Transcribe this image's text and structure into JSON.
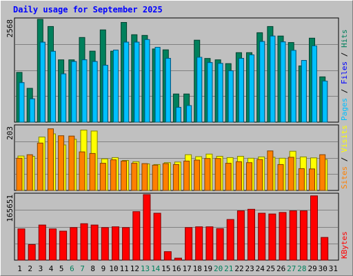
{
  "chart_data": {
    "type": "bar",
    "title": "Daily usage for September 2025",
    "categories": [
      "1",
      "2",
      "3",
      "4",
      "5",
      "6",
      "7",
      "8",
      "9",
      "10",
      "11",
      "12",
      "13",
      "14",
      "15",
      "16",
      "17",
      "18",
      "19",
      "20",
      "21",
      "22",
      "23",
      "24",
      "25",
      "26",
      "27",
      "28",
      "29",
      "30",
      "31"
    ],
    "weekend_days": [
      "6",
      "7",
      "13",
      "14",
      "20",
      "21",
      "27",
      "28"
    ],
    "panels": [
      {
        "name": "hits_files_pages",
        "ymax_label": "2568",
        "ymax": 2568,
        "legend": [
          {
            "text": "Hits",
            "color": "#00805C"
          },
          {
            "text": "Files",
            "color": "#0000FF"
          },
          {
            "text": "Pages",
            "color": "#00C0FF"
          }
        ],
        "series": [
          {
            "name": "Hits",
            "color": "#00805C",
            "values": [
              1242,
              845,
              2568,
              2388,
              1556,
              1556,
              2115,
              1773,
              2304,
              1773,
              2490,
              2183,
              2166,
              1829,
              1807,
              704,
              704,
              2047,
              1591,
              1556,
              1462,
              1735,
              1735,
              2234,
              2388,
              2151,
              1989,
              1404,
              2098,
              1131,
              0
            ]
          },
          {
            "name": "Files",
            "color": "#0000FF",
            "values": [
              986,
              581,
              1996,
              1768,
              1204,
              1513,
              1556,
              1513,
              1421,
              1800,
              1998,
              1998,
              2061,
              1870,
              1592,
              368,
              413,
              1620,
              1487,
              1466,
              1283,
              1593,
              1680,
              2013,
              2150,
              2005,
              1793,
              1541,
              1904,
              1025,
              0
            ]
          },
          {
            "name": "Pages",
            "color": "#00C0FF",
            "values": [
              986,
              581,
              1996,
              1768,
              1204,
              1513,
              1556,
              1513,
              1421,
              1800,
              1998,
              1998,
              2061,
              1870,
              1592,
              368,
              413,
              1620,
              1487,
              1466,
              1283,
              1593,
              1680,
              2013,
              2150,
              2005,
              1793,
              1541,
              1904,
              1025,
              0
            ]
          }
        ]
      },
      {
        "name": "visits_sites",
        "ymax_label": "203",
        "ymax": 203,
        "legend": [
          {
            "text": "Visits",
            "color": "#FFFF00"
          },
          {
            "text": "Sites",
            "color": "#FF8000"
          }
        ],
        "series": [
          {
            "name": "Visits",
            "color": "#FFFF00",
            "values": [
              109,
              108,
              169,
              179,
              144,
              162,
              191,
              188,
              100,
              104,
              95,
              91,
              84,
              82,
              88,
              90,
              113,
              107,
              115,
              108,
              104,
              108,
              102,
              106,
              105,
              102,
              124,
              106,
              103,
              98,
              0
            ]
          },
          {
            "name": "Sites",
            "color": "#FF8000",
            "values": [
              102,
              113,
              150,
              195,
              173,
              172,
              122,
              117,
              86,
              97,
              93,
              86,
              85,
              80,
              85,
              82,
              93,
              96,
              101,
              101,
              86,
              91,
              88,
              98,
              125,
              82,
              105,
              69,
              68,
              113,
              0
            ]
          }
        ]
      },
      {
        "name": "kbytes",
        "ymax_label": "165651",
        "ymax": 165651,
        "legend": [
          {
            "text": "KBytes",
            "color": "#FF0000"
          }
        ],
        "series": [
          {
            "name": "KBytes",
            "color": "#FF0000",
            "values": [
              78961,
              39484,
              88832,
              78961,
              73171,
              82229,
              92047,
              88832,
              82229,
              84203,
              82229,
              122514,
              165651,
              118567,
              21450,
              5018,
              82229,
              84203,
              84203,
              79617,
              102775,
              124488,
              128436,
              118567,
              116593,
              120541,
              124488,
              124488,
              162493,
              57281,
              0
            ]
          }
        ]
      }
    ]
  }
}
